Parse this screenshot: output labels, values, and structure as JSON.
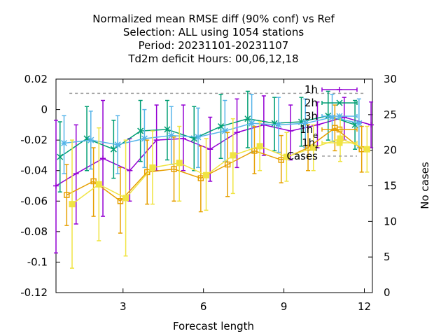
{
  "chart_data": {
    "type": "line",
    "title_lines": [
      "Normalized mean RMSE diff (90% conf) vs Ref",
      "Selection: ALL using  1054 stations",
      "Period: 20231101-20231107",
      "Td2m deficit   Hours:  00,06,12,18"
    ],
    "xlabel": "Forecast length",
    "ylabel_right": "No cases",
    "xlim": [
      0.5,
      12.3
    ],
    "ylim": [
      -0.12,
      0.02
    ],
    "y2lim": [
      0,
      30
    ],
    "xticks": [
      3,
      6,
      9,
      12
    ],
    "xtick_labels": [
      "3",
      "6",
      "9",
      "12"
    ],
    "yticks": [
      0.02,
      0,
      -0.02,
      -0.04,
      -0.06,
      -0.08,
      -0.1,
      -0.12
    ],
    "ytick_labels": [
      "0.02",
      "0",
      "-0.02",
      "-0.04",
      "-0.06",
      "-0.08",
      "-0.1",
      "-0.12"
    ],
    "y2ticks": [
      0,
      5,
      10,
      15,
      20,
      25,
      30
    ],
    "y2tick_labels": [
      "0",
      "5",
      "10",
      "15",
      "20",
      "25",
      "30"
    ],
    "legend_position": "top-right",
    "series": [
      {
        "name": "1h",
        "color": "#9400d3",
        "marker": "plus",
        "x": [
          0.5,
          1.25,
          2.25,
          3.25,
          4.25,
          5.25,
          6.25,
          7.25,
          8.25,
          9.25,
          10.25,
          11.25,
          12.25
        ],
        "y": [
          -0.05,
          -0.042,
          -0.032,
          -0.04,
          -0.02,
          -0.019,
          -0.026,
          -0.015,
          -0.01,
          -0.014,
          -0.01,
          -0.005,
          -0.01
        ],
        "err_low": [
          -0.094,
          -0.075,
          -0.07,
          -0.06,
          -0.04,
          -0.04,
          -0.047,
          -0.038,
          -0.03,
          -0.033,
          -0.025,
          -0.02,
          -0.025
        ],
        "err_high": [
          -0.007,
          -0.01,
          0.006,
          -0.019,
          0.003,
          0.003,
          -0.005,
          0.007,
          0.009,
          0.003,
          0.005,
          0.008,
          0.005
        ]
      },
      {
        "name": "2h",
        "color": "#009e73",
        "marker": "cross",
        "x": [
          0.65,
          1.65,
          2.65,
          3.65,
          4.65,
          5.65,
          6.65,
          7.65,
          8.65,
          9.65,
          10.65,
          11.65
        ],
        "y": [
          -0.031,
          -0.019,
          -0.026,
          -0.014,
          -0.013,
          -0.019,
          -0.011,
          -0.006,
          -0.009,
          -0.008,
          -0.004,
          -0.01
        ],
        "err_low": [
          -0.054,
          -0.04,
          -0.045,
          -0.034,
          -0.033,
          -0.04,
          -0.032,
          -0.025,
          -0.027,
          -0.024,
          -0.02,
          -0.026
        ],
        "err_high": [
          -0.008,
          0.002,
          -0.007,
          0.006,
          0.006,
          0.002,
          0.01,
          0.012,
          0.008,
          0.008,
          0.012,
          0.006
        ]
      },
      {
        "name": "3h",
        "color": "#56b4e9",
        "marker": "star",
        "x": [
          0.8,
          1.8,
          2.8,
          3.8,
          4.8,
          5.8,
          6.8,
          7.8,
          8.8,
          9.8,
          10.8,
          11.8
        ],
        "y": [
          -0.022,
          -0.02,
          -0.023,
          -0.019,
          -0.017,
          -0.018,
          -0.014,
          -0.009,
          -0.01,
          -0.009,
          -0.005,
          -0.009
        ],
        "err_low": [
          -0.042,
          -0.039,
          -0.042,
          -0.038,
          -0.036,
          -0.038,
          -0.034,
          -0.028,
          -0.028,
          -0.025,
          -0.021,
          -0.025
        ],
        "err_high": [
          -0.004,
          -0.001,
          -0.004,
          0.0,
          0.002,
          0.001,
          0.006,
          0.01,
          0.008,
          0.007,
          0.01,
          0.007
        ]
      },
      {
        "name": "1h_e",
        "color": "#e69f00",
        "marker": "square-open",
        "x": [
          0.9,
          1.9,
          2.9,
          3.9,
          4.9,
          5.9,
          6.9,
          7.9,
          8.9,
          9.9,
          10.9,
          11.9
        ],
        "y": [
          -0.056,
          -0.047,
          -0.06,
          -0.041,
          -0.039,
          -0.045,
          -0.036,
          -0.027,
          -0.033,
          -0.025,
          -0.012,
          -0.026
        ],
        "err_low": [
          -0.076,
          -0.07,
          -0.081,
          -0.062,
          -0.06,
          -0.067,
          -0.057,
          -0.042,
          -0.048,
          -0.04,
          -0.027,
          -0.041
        ],
        "err_high": [
          -0.036,
          -0.025,
          -0.038,
          -0.02,
          -0.018,
          -0.024,
          -0.015,
          -0.011,
          -0.017,
          -0.01,
          0.003,
          -0.011
        ]
      },
      {
        "name": "1h_f",
        "color": "#f0e442",
        "marker": "square-filled",
        "x": [
          1.1,
          2.1,
          3.1,
          4.1,
          5.1,
          6.1,
          7.1,
          8.1,
          9.1,
          10.1,
          11.1,
          12.1
        ],
        "y": [
          -0.062,
          -0.049,
          -0.058,
          -0.038,
          -0.035,
          -0.043,
          -0.03,
          -0.024,
          -0.031,
          -0.025,
          -0.019,
          -0.026
        ],
        "err_low": [
          -0.104,
          -0.086,
          -0.096,
          -0.062,
          -0.06,
          -0.066,
          -0.055,
          -0.04,
          -0.047,
          -0.04,
          -0.034,
          -0.041
        ],
        "err_high": [
          -0.02,
          -0.012,
          -0.02,
          -0.014,
          -0.011,
          -0.019,
          -0.006,
          -0.008,
          -0.015,
          -0.01,
          -0.004,
          -0.011
        ]
      }
    ],
    "cases": {
      "name": "Cases",
      "color": "#a0a0a0",
      "dash": "4,4",
      "x": [
        1,
        12
      ],
      "y": [
        28,
        28
      ]
    }
  }
}
